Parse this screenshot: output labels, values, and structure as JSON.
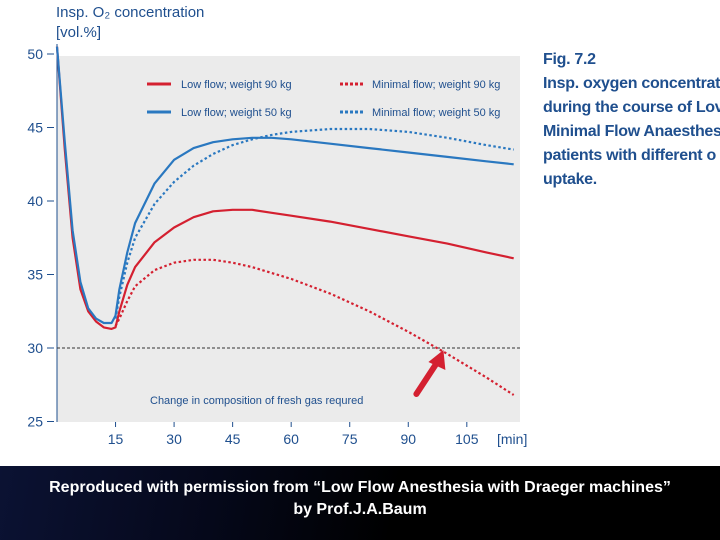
{
  "chart_data": {
    "type": "line",
    "ylabel_lines": [
      "Insp. O₂ concentration",
      "[vol.%]"
    ],
    "xunit": "[min]",
    "xticks": [
      15,
      30,
      45,
      60,
      75,
      90,
      105
    ],
    "yticks": [
      25,
      30,
      35,
      40,
      45,
      50
    ],
    "xlim": [
      0,
      118
    ],
    "ylim": [
      24,
      50
    ],
    "grid": false,
    "legend_position": "top",
    "annotation": "Change in composition of fresh gas requred",
    "threshold_line": 30,
    "arrow_point": {
      "x": 99,
      "y": 30
    },
    "series": [
      {
        "name": "Low flow; weight 90 kg",
        "color": "#d42030",
        "style": "solid",
        "x": [
          0,
          2,
          4,
          6,
          8,
          10,
          12,
          14,
          15,
          16,
          18,
          20,
          25,
          30,
          35,
          40,
          45,
          50,
          55,
          60,
          70,
          80,
          90,
          100,
          110,
          117
        ],
        "y": [
          50.5,
          43.5,
          37.5,
          34,
          32.5,
          31.8,
          31.4,
          31.3,
          31.4,
          32.5,
          34.3,
          35.5,
          37.2,
          38.2,
          38.9,
          39.3,
          39.4,
          39.4,
          39.2,
          39,
          38.6,
          38.1,
          37.6,
          37.1,
          36.5,
          36.1
        ]
      },
      {
        "name": "Low flow; weight 50 kg",
        "color": "#2a78c0",
        "style": "solid",
        "x": [
          0,
          2,
          4,
          6,
          8,
          10,
          12,
          14,
          15,
          16,
          18,
          20,
          25,
          30,
          35,
          40,
          45,
          50,
          55,
          60,
          70,
          80,
          90,
          100,
          110,
          117
        ],
        "y": [
          50.5,
          44,
          38,
          34.5,
          32.7,
          32,
          31.7,
          31.7,
          32.2,
          34,
          36.5,
          38.5,
          41.2,
          42.8,
          43.6,
          44,
          44.2,
          44.3,
          44.3,
          44.2,
          43.9,
          43.6,
          43.3,
          43,
          42.7,
          42.5
        ]
      },
      {
        "name": "Minimal flow; weight 90 kg",
        "color": "#d42030",
        "style": "dotted",
        "x": [
          15,
          16,
          18,
          20,
          25,
          30,
          35,
          40,
          45,
          50,
          55,
          60,
          70,
          80,
          90,
          100,
          110,
          117
        ],
        "y": [
          31.5,
          32,
          33.2,
          34.2,
          35.3,
          35.8,
          36,
          36,
          35.8,
          35.5,
          35.1,
          34.7,
          33.7,
          32.5,
          31.1,
          29.6,
          28,
          26.8
        ]
      },
      {
        "name": "Minimal flow; weight 50 kg",
        "color": "#2a78c0",
        "style": "dotted",
        "x": [
          15,
          16,
          18,
          20,
          25,
          30,
          35,
          40,
          45,
          50,
          55,
          60,
          70,
          80,
          90,
          100,
          110,
          117
        ],
        "y": [
          32,
          33.5,
          35.8,
          37.5,
          39.8,
          41.3,
          42.4,
          43.2,
          43.8,
          44.2,
          44.5,
          44.7,
          44.9,
          44.9,
          44.7,
          44.3,
          43.8,
          43.5
        ]
      }
    ]
  },
  "caption": {
    "lines": [
      "Fig. 7.2",
      "Insp. oxygen concentrat",
      "during the course of Lov",
      "Minimal Flow Anaesthes",
      "patients with different o",
      "uptake."
    ]
  },
  "footer": {
    "line1": "Reproduced with permission from “Low Flow Anesthesia with Draeger machines”",
    "line2": "by Prof.J.A.Baum"
  },
  "colors": {
    "red": "#d42030",
    "blue": "#2a78c0",
    "text": "#1f4f8e",
    "plot_bg": "#ebebeb"
  }
}
